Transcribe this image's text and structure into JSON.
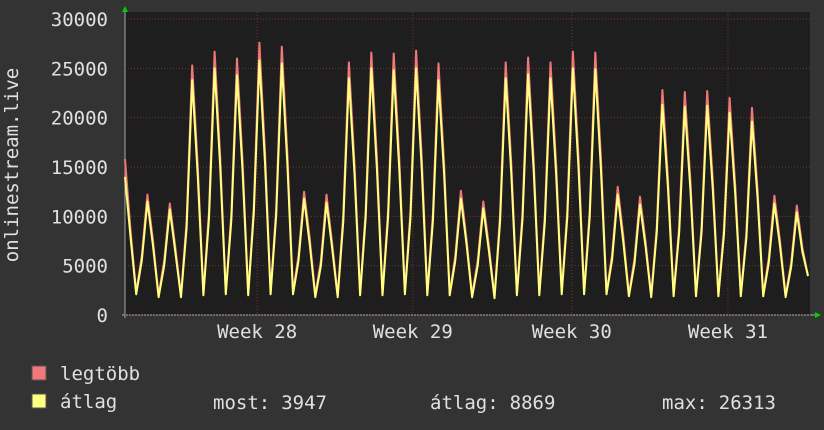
{
  "chart_data": {
    "type": "line",
    "ylabel": "onlinestream.live",
    "ylim": [
      0,
      30000
    ],
    "yticks": [
      0,
      5000,
      10000,
      15000,
      20000,
      25000,
      30000
    ],
    "xlim": [
      0,
      122
    ],
    "xticks": [
      {
        "value": 23.6,
        "label": "Week 28"
      },
      {
        "value": 51.4,
        "label": "Week 29"
      },
      {
        "value": 79.8,
        "label": "Week 30"
      },
      {
        "value": 107.7,
        "label": "Week 31"
      }
    ],
    "grid": true,
    "series": [
      {
        "name": "legtöbb",
        "color": "#f07878",
        "values": [
          15800,
          8500,
          2300,
          6000,
          12200,
          7500,
          2000,
          5500,
          11300,
          6800,
          2000,
          9500,
          25300,
          15000,
          2200,
          10500,
          26700,
          16000,
          2300,
          10400,
          26000,
          15500,
          2200,
          11000,
          27600,
          16500,
          2300,
          10800,
          27200,
          16300,
          2300,
          6000,
          12500,
          7800,
          2000,
          5500,
          12200,
          7300,
          2000,
          10200,
          25600,
          15300,
          2200,
          10600,
          26600,
          15900,
          2200,
          10600,
          26500,
          15800,
          2300,
          10600,
          26800,
          16000,
          2200,
          10200,
          25500,
          15300,
          2200,
          6000,
          12600,
          7700,
          2000,
          5500,
          11500,
          7000,
          1900,
          10200,
          25600,
          15300,
          2200,
          10400,
          26100,
          15600,
          2200,
          10200,
          25600,
          15300,
          2300,
          10600,
          26700,
          16000,
          2300,
          10600,
          26600,
          15900,
          2300,
          6100,
          13000,
          8000,
          2100,
          5700,
          12000,
          7400,
          2000,
          9000,
          22800,
          13700,
          2100,
          9000,
          22600,
          13600,
          2100,
          9000,
          22700,
          13600,
          2100,
          8800,
          22000,
          13200,
          2100,
          8400,
          21000,
          12600,
          2100,
          5800,
          12100,
          7500,
          2000,
          5300,
          11100,
          6800,
          4000
        ]
      },
      {
        "name": "átlag",
        "color": "#ffff80",
        "values": [
          14000,
          7800,
          2100,
          5500,
          11500,
          7000,
          1800,
          5000,
          10700,
          6300,
          1800,
          8800,
          23800,
          14000,
          2000,
          9800,
          25000,
          15000,
          2100,
          9700,
          24300,
          14500,
          2000,
          10300,
          25800,
          15400,
          2100,
          10100,
          25500,
          15200,
          2100,
          5500,
          11800,
          7200,
          1800,
          5000,
          11400,
          6800,
          1800,
          9500,
          24000,
          14300,
          2000,
          9900,
          25000,
          14800,
          2000,
          9900,
          24800,
          14700,
          2100,
          9900,
          25000,
          14900,
          2000,
          9500,
          23800,
          14300,
          2000,
          5500,
          11800,
          7200,
          1800,
          5000,
          10800,
          6500,
          1700,
          9500,
          24000,
          14300,
          2000,
          9700,
          24400,
          14600,
          2000,
          9500,
          24000,
          14300,
          2100,
          9900,
          25000,
          14900,
          2100,
          9900,
          24900,
          14800,
          2100,
          5600,
          12200,
          7400,
          1900,
          5200,
          11200,
          6900,
          1800,
          8400,
          21300,
          12800,
          1900,
          8400,
          21100,
          12700,
          1900,
          8400,
          21200,
          12700,
          1900,
          8200,
          20500,
          12300,
          1900,
          7800,
          19600,
          11800,
          1900,
          5300,
          11300,
          7000,
          1800,
          4900,
          10400,
          6400,
          3947
        ]
      }
    ],
    "stats": [
      {
        "label": "most:",
        "value": 3947
      },
      {
        "label": "átlag:",
        "value": 8869
      },
      {
        "label": "max:",
        "value": 26313
      }
    ]
  }
}
